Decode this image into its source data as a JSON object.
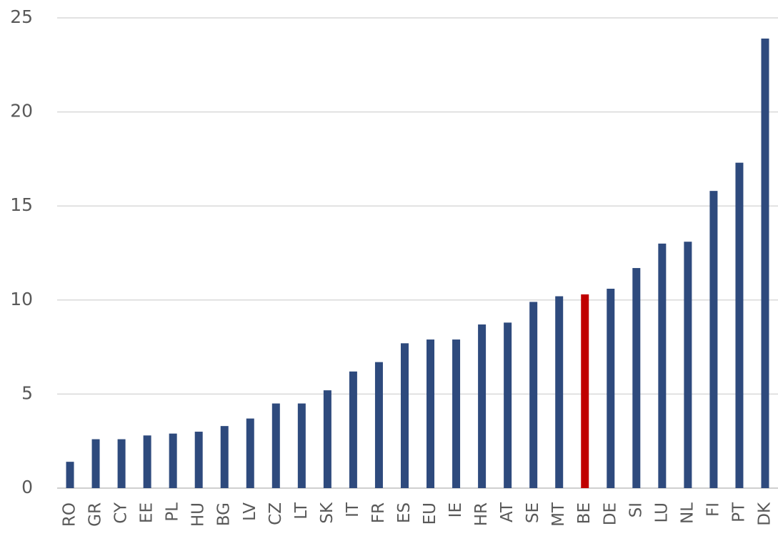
{
  "chart_data": {
    "type": "bar",
    "categories": [
      "RO",
      "GR",
      "CY",
      "EE",
      "PL",
      "HU",
      "BG",
      "LV",
      "CZ",
      "LT",
      "SK",
      "IT",
      "FR",
      "ES",
      "EU",
      "IE",
      "HR",
      "AT",
      "SE",
      "MT",
      "BE",
      "DE",
      "SI",
      "LU",
      "NL",
      "FI",
      "PT",
      "DK"
    ],
    "values": [
      1.4,
      2.6,
      2.6,
      2.8,
      2.9,
      3.0,
      3.3,
      3.7,
      4.5,
      4.5,
      5.2,
      6.2,
      6.7,
      7.7,
      7.9,
      7.9,
      8.7,
      8.8,
      9.9,
      10.2,
      10.3,
      10.6,
      11.7,
      13.0,
      13.1,
      15.8,
      17.3,
      23.9
    ],
    "colors": [
      "#2e4a7d",
      "#2e4a7d",
      "#2e4a7d",
      "#2e4a7d",
      "#2e4a7d",
      "#2e4a7d",
      "#2e4a7d",
      "#2e4a7d",
      "#2e4a7d",
      "#2e4a7d",
      "#2e4a7d",
      "#2e4a7d",
      "#2e4a7d",
      "#2e4a7d",
      "#2e4a7d",
      "#2e4a7d",
      "#2e4a7d",
      "#2e4a7d",
      "#2e4a7d",
      "#2e4a7d",
      "#c00000",
      "#2e4a7d",
      "#2e4a7d",
      "#2e4a7d",
      "#2e4a7d",
      "#2e4a7d",
      "#2e4a7d",
      "#2e4a7d"
    ],
    "ylim": [
      0,
      25
    ],
    "yticks": [
      0,
      5,
      10,
      15,
      20,
      25
    ],
    "grid": true
  }
}
